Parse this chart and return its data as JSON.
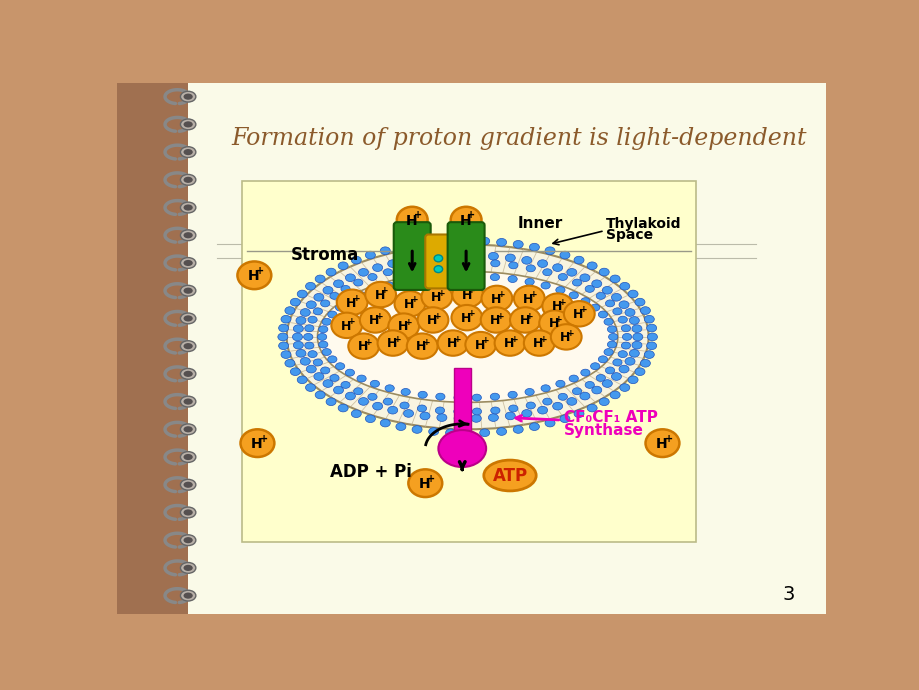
{
  "title": "Formation of proton gradient is light-dependent",
  "title_color": "#8B5A2B",
  "title_fontsize": 17,
  "bg_outer": "#C8956B",
  "bg_paper": "#FAFAE8",
  "bg_diagram": "#FFFFCC",
  "blue_dot_color": "#4499EE",
  "blue_dot_edge": "#2255BB",
  "orange_ball_color": "#F5A020",
  "orange_ball_edge": "#CC7700",
  "green_protein_color": "#2A8B1A",
  "green_protein_edge": "#1A5A0A",
  "yellow_protein_color": "#DDAA00",
  "yellow_protein_edge": "#AA7700",
  "cyan_small_color": "#00CCBB",
  "magenta_atp_color": "#EE00BB",
  "magenta_atp_edge": "#BB0088",
  "atp_orange_color": "#F5A020",
  "atp_text_color": "#CC2200",
  "page_number": "3",
  "membrane_fill": "#F8F4E0",
  "membrane_inner_fill": "#FFFFF0",
  "lumen_fill": "#FFFAEE",
  "hatch_color": "#BBAA88",
  "label_cf_line1": "CF₀CF₁ ATP",
  "label_cf_line2": "Synthase",
  "label_stroma": "Stroma",
  "label_inner": "Inner",
  "label_thylakoid": "Thylakoid",
  "label_space": "Space",
  "label_adp": "ADP + Pi",
  "label_atp": "ATP"
}
